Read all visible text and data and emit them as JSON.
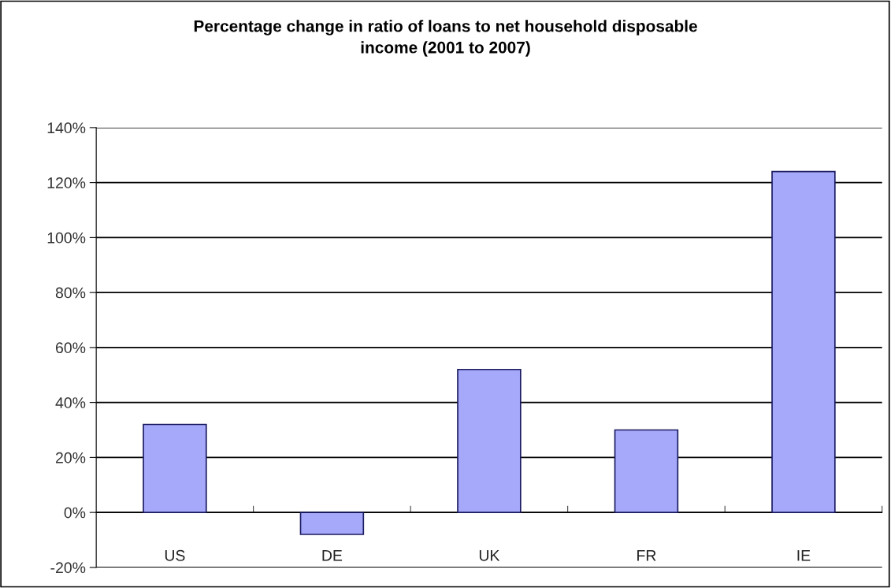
{
  "chart_data": {
    "type": "bar",
    "title": "Percentage change in ratio of loans to net household disposable\nincome (2001 to 2007)",
    "categories": [
      "US",
      "DE",
      "UK",
      "FR",
      "IE"
    ],
    "values": [
      32,
      -8,
      52,
      30,
      124
    ],
    "color": "#a6a8fa",
    "ylim": [
      -20,
      140
    ],
    "yticks": [
      {
        "value": -20,
        "label": "-20%"
      },
      {
        "value": 0,
        "label": "0%"
      },
      {
        "value": 20,
        "label": "20%"
      },
      {
        "value": 40,
        "label": "40%"
      },
      {
        "value": 60,
        "label": "60%"
      },
      {
        "value": 80,
        "label": "80%"
      },
      {
        "value": 100,
        "label": "100%"
      },
      {
        "value": 120,
        "label": "120%"
      },
      {
        "value": 140,
        "label": "140%"
      }
    ],
    "grid": "y",
    "legend": false
  }
}
